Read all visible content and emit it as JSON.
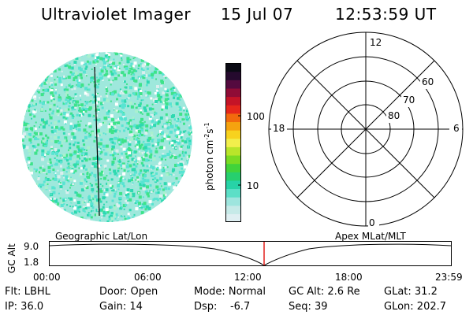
{
  "header": {
    "instrument": "Ultraviolet Imager",
    "date": "15 Jul 07",
    "time": "12:53:59 UT"
  },
  "colorbar": {
    "label": "photon cm",
    "label_sup1": "-2",
    "label_mid": "s",
    "label_sup2": "-1",
    "tick_labels": [
      "100",
      "10"
    ],
    "colors": [
      "#dfeff2",
      "#c6eae8",
      "#9ee5de",
      "#5cdfc7",
      "#27d3a7",
      "#27cf6e",
      "#41d33a",
      "#7adb23",
      "#b9e52a",
      "#f2ef4c",
      "#f7d21e",
      "#f5a20f",
      "#f26a0d",
      "#e6271b",
      "#c41427",
      "#8f0c36",
      "#540a3f",
      "#250a2e",
      "#0a0a14"
    ]
  },
  "polar": {
    "mlt_labels": {
      "top": "12",
      "left": "18",
      "right": "6",
      "bottom": "0"
    },
    "lat_labels": [
      "60",
      "70",
      "80"
    ]
  },
  "timeline": {
    "left_label": "Geographic Lat/Lon",
    "right_label": "Apex MLat/MLT",
    "axis_title": "GC Alt",
    "y_ticks": [
      "9.0",
      "1.8"
    ],
    "x_ticks": [
      "00:00",
      "06:00",
      "12:00",
      "18:00",
      "23:59"
    ]
  },
  "info": {
    "flt": "Flt: LBHL",
    "ip": "IP: 36.0",
    "door": "Door: Open",
    "gain": "Gain: 14",
    "mode": "Mode: Normal",
    "dsp": "Dsp:    -6.7",
    "gc_alt": "GC Alt: 2.6 Re",
    "seq": "Seq: 39",
    "glat": "GLat: 31.2",
    "glon": "GLon: 202.7"
  },
  "colors": {
    "marker": "#e2211c",
    "noise_green": "#3ee38a",
    "noise_cyan": "#58e4d2",
    "noise_pale": "#dbeeee"
  }
}
